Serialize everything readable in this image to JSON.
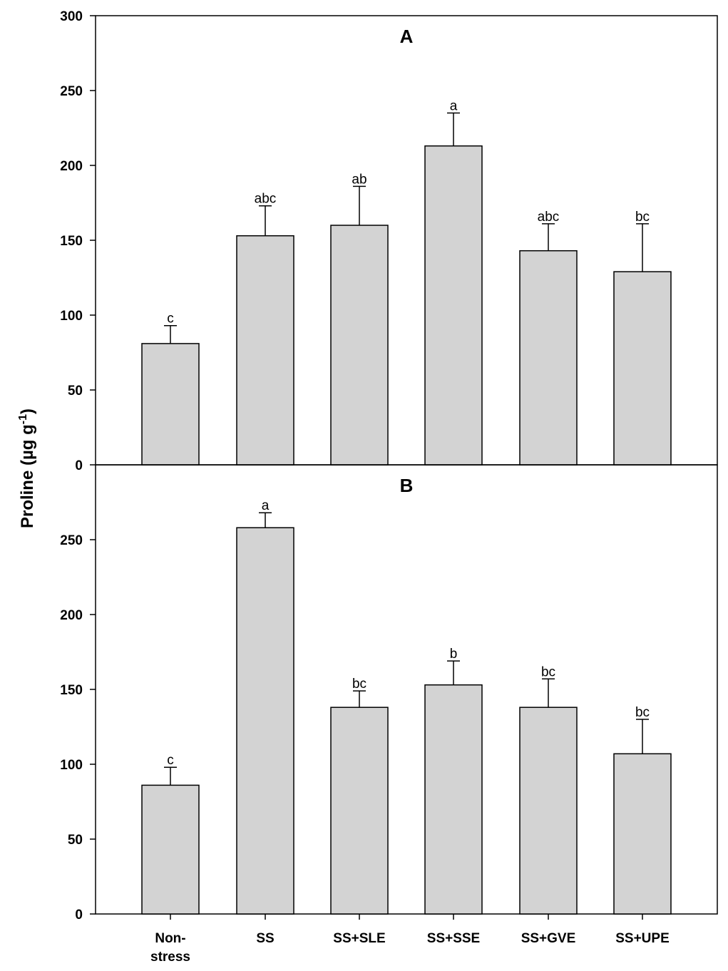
{
  "chart_data": {
    "type": "bar",
    "ylabel": {
      "prefix": "Proline (",
      "unit": "µg g",
      "superscript": "-1",
      "suffix": ")"
    },
    "categories": [
      {
        "line1": "Non-",
        "line2": "stress"
      },
      {
        "line1": "SS",
        "line2": ""
      },
      {
        "line1": "SS+SLE",
        "line2": ""
      },
      {
        "line1": "SS+SSE",
        "line2": ""
      },
      {
        "line1": "SS+GVE",
        "line2": ""
      },
      {
        "line1": "SS+UPE",
        "line2": ""
      }
    ],
    "bar_color": "#d3d3d3",
    "panels": [
      {
        "title": "A",
        "ylim": [
          0,
          300
        ],
        "yticks": [
          "0",
          "50",
          "100",
          "150",
          "200",
          "250",
          "300"
        ],
        "values": [
          81,
          153,
          160,
          213,
          143,
          129
        ],
        "errors": [
          12,
          20,
          26,
          22,
          18,
          32
        ],
        "letters": [
          "c",
          "abc",
          "ab",
          "a",
          "abc",
          "bc"
        ]
      },
      {
        "title": "B",
        "ylim": [
          0,
          300
        ],
        "yticks": [
          "0",
          "50",
          "100",
          "150",
          "200",
          "250"
        ],
        "values": [
          86,
          258,
          138,
          153,
          138,
          107
        ],
        "errors": [
          12,
          10,
          11,
          16,
          19,
          23
        ],
        "letters": [
          "c",
          "a",
          "bc",
          "b",
          "bc",
          "bc"
        ]
      }
    ]
  }
}
